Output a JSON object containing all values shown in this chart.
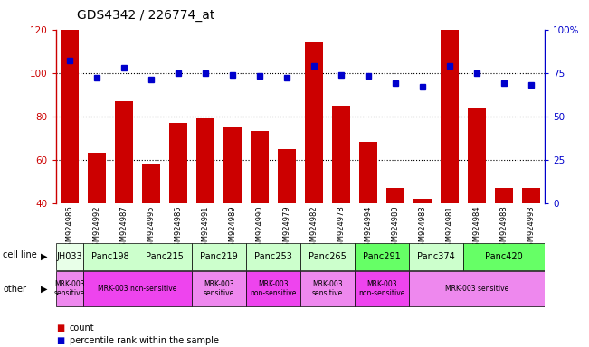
{
  "title": "GDS4342 / 226774_at",
  "samples": [
    "GSM924986",
    "GSM924992",
    "GSM924987",
    "GSM924995",
    "GSM924985",
    "GSM924991",
    "GSM924989",
    "GSM924990",
    "GSM924979",
    "GSM924982",
    "GSM924978",
    "GSM924994",
    "GSM924980",
    "GSM924983",
    "GSM924981",
    "GSM924984",
    "GSM924988",
    "GSM924993"
  ],
  "bar_values": [
    120,
    63,
    87,
    58,
    77,
    79,
    75,
    73,
    65,
    114,
    85,
    68,
    47,
    42,
    120,
    84,
    47,
    47
  ],
  "dot_percentile": [
    82,
    72,
    78,
    71,
    75,
    75,
    74,
    73,
    72,
    79,
    74,
    73,
    69,
    67,
    79,
    75,
    69,
    68
  ],
  "bar_color": "#cc0000",
  "dot_color": "#0000cc",
  "ylim_left": [
    40,
    120
  ],
  "ylim_right": [
    0,
    100
  ],
  "yticks_left": [
    40,
    60,
    80,
    100,
    120
  ],
  "yticks_right": [
    0,
    25,
    50,
    75,
    100
  ],
  "ytick_labels_right": [
    "0",
    "25",
    "50",
    "75",
    "100%"
  ],
  "cell_lines": [
    {
      "name": "JH033",
      "start": 0,
      "end": 1,
      "color": "#e8ffe8"
    },
    {
      "name": "Panc198",
      "start": 1,
      "end": 3,
      "color": "#ccffcc"
    },
    {
      "name": "Panc215",
      "start": 3,
      "end": 5,
      "color": "#ccffcc"
    },
    {
      "name": "Panc219",
      "start": 5,
      "end": 7,
      "color": "#ccffcc"
    },
    {
      "name": "Panc253",
      "start": 7,
      "end": 9,
      "color": "#ccffcc"
    },
    {
      "name": "Panc265",
      "start": 9,
      "end": 11,
      "color": "#ccffcc"
    },
    {
      "name": "Panc291",
      "start": 11,
      "end": 13,
      "color": "#66ff66"
    },
    {
      "name": "Panc374",
      "start": 13,
      "end": 15,
      "color": "#ccffcc"
    },
    {
      "name": "Panc420",
      "start": 15,
      "end": 18,
      "color": "#66ff66"
    }
  ],
  "other_rows": [
    {
      "name": "MRK-003\nsensitive",
      "start": 0,
      "end": 1,
      "color": "#ee88ee"
    },
    {
      "name": "MRK-003 non-sensitive",
      "start": 1,
      "end": 5,
      "color": "#ee44ee"
    },
    {
      "name": "MRK-003\nsensitive",
      "start": 5,
      "end": 7,
      "color": "#ee88ee"
    },
    {
      "name": "MRK-003\nnon-sensitive",
      "start": 7,
      "end": 9,
      "color": "#ee44ee"
    },
    {
      "name": "MRK-003\nsensitive",
      "start": 9,
      "end": 11,
      "color": "#ee88ee"
    },
    {
      "name": "MRK-003\nnon-sensitive",
      "start": 11,
      "end": 13,
      "color": "#ee44ee"
    },
    {
      "name": "MRK-003 sensitive",
      "start": 13,
      "end": 18,
      "color": "#ee88ee"
    }
  ],
  "legend_count_color": "#cc0000",
  "legend_dot_color": "#0000cc",
  "bg_color": "#ffffff",
  "label_fontsize": 7,
  "tick_fontsize": 7.5,
  "sample_fontsize": 6.0
}
